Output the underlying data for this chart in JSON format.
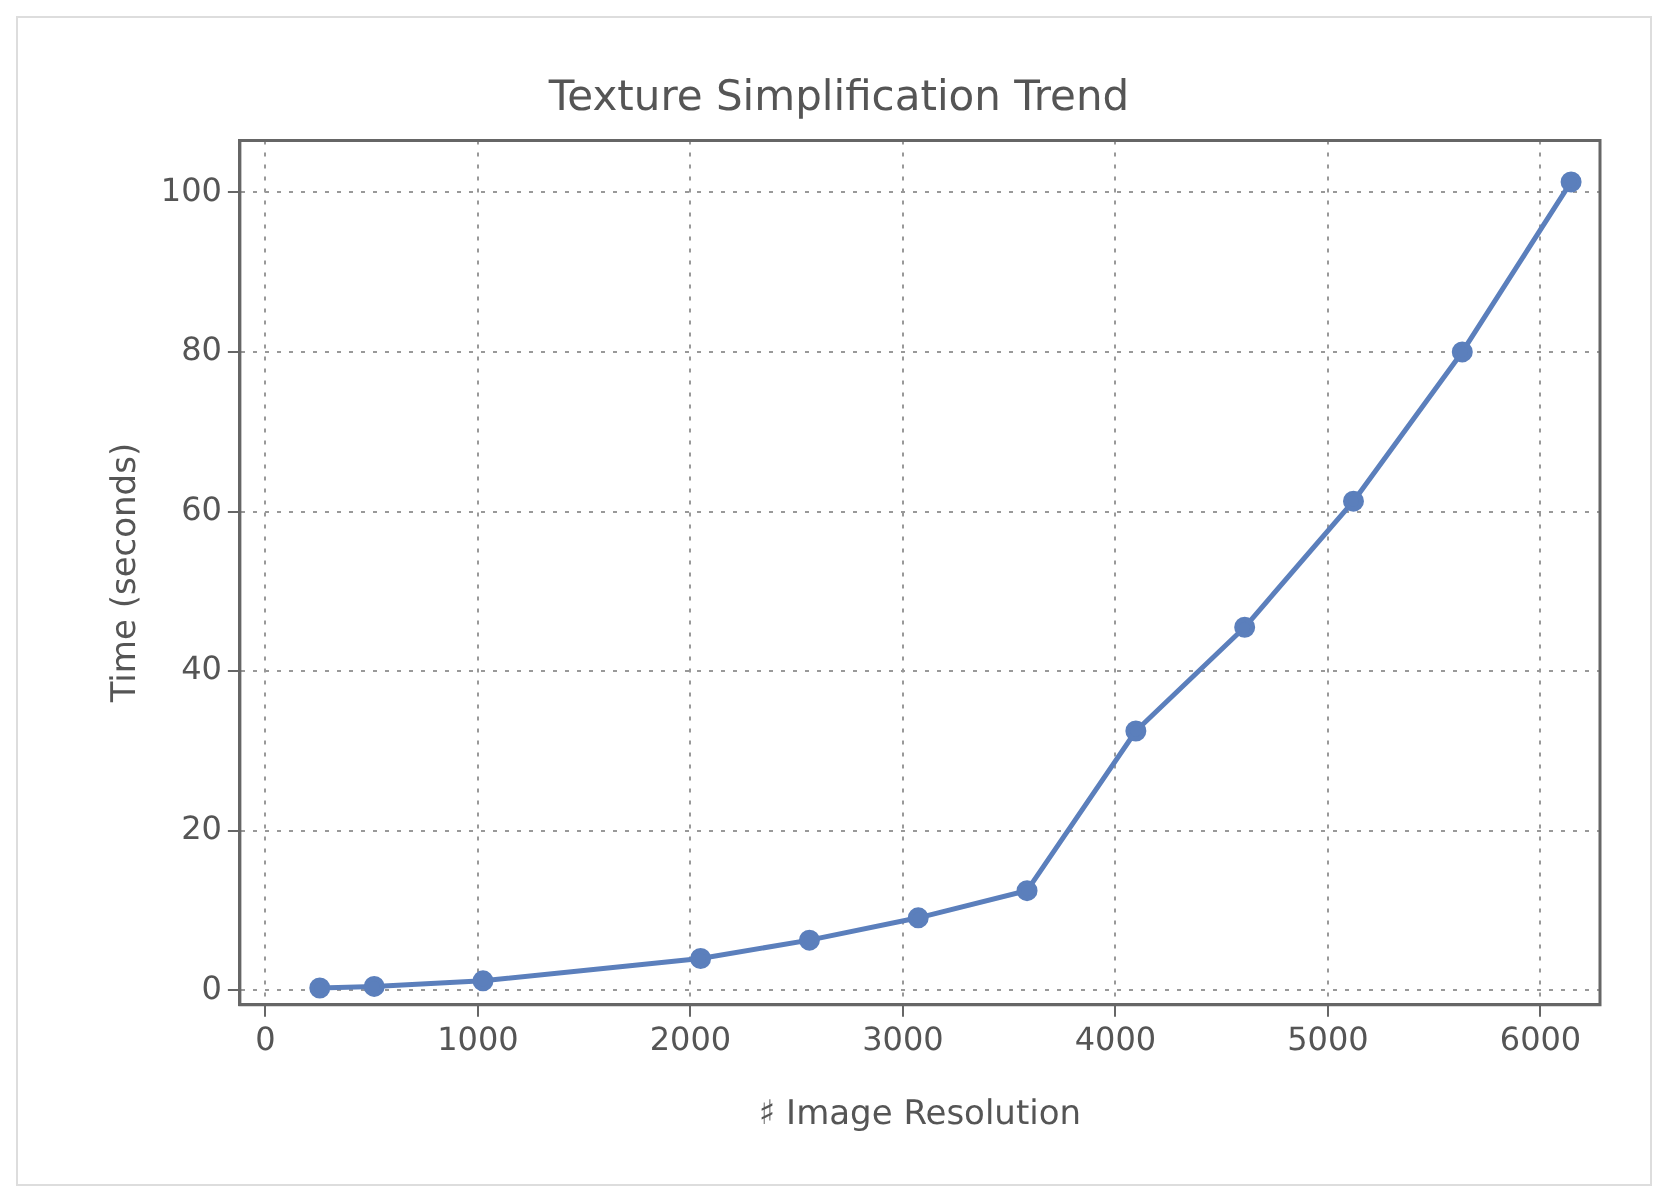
{
  "chart_data": {
    "type": "line",
    "title": "Texture Simplification Trend",
    "xlabel": "♯ Image Resolution",
    "ylabel": "Time (seconds)",
    "x": [
      256,
      512,
      1024,
      2048,
      2560,
      3072,
      3584,
      4096,
      4608,
      5120,
      5632,
      6144
    ],
    "series": [
      {
        "color": "#5b7fbc",
        "values": [
          0.3,
          0.5,
          1.2,
          4,
          6.3,
          9.1,
          12.5,
          32.5,
          45.5,
          61.3,
          80,
          101.3
        ]
      }
    ],
    "xlim": [
      -120,
      6280
    ],
    "ylim": [
      -1.8,
      106.5
    ],
    "xticks": [
      0,
      1000,
      2000,
      3000,
      4000,
      5000,
      6000
    ],
    "yticks": [
      0,
      20,
      40,
      60,
      80,
      100
    ],
    "grid": true,
    "legend": false,
    "marker": "circle",
    "line_style": "solid"
  }
}
